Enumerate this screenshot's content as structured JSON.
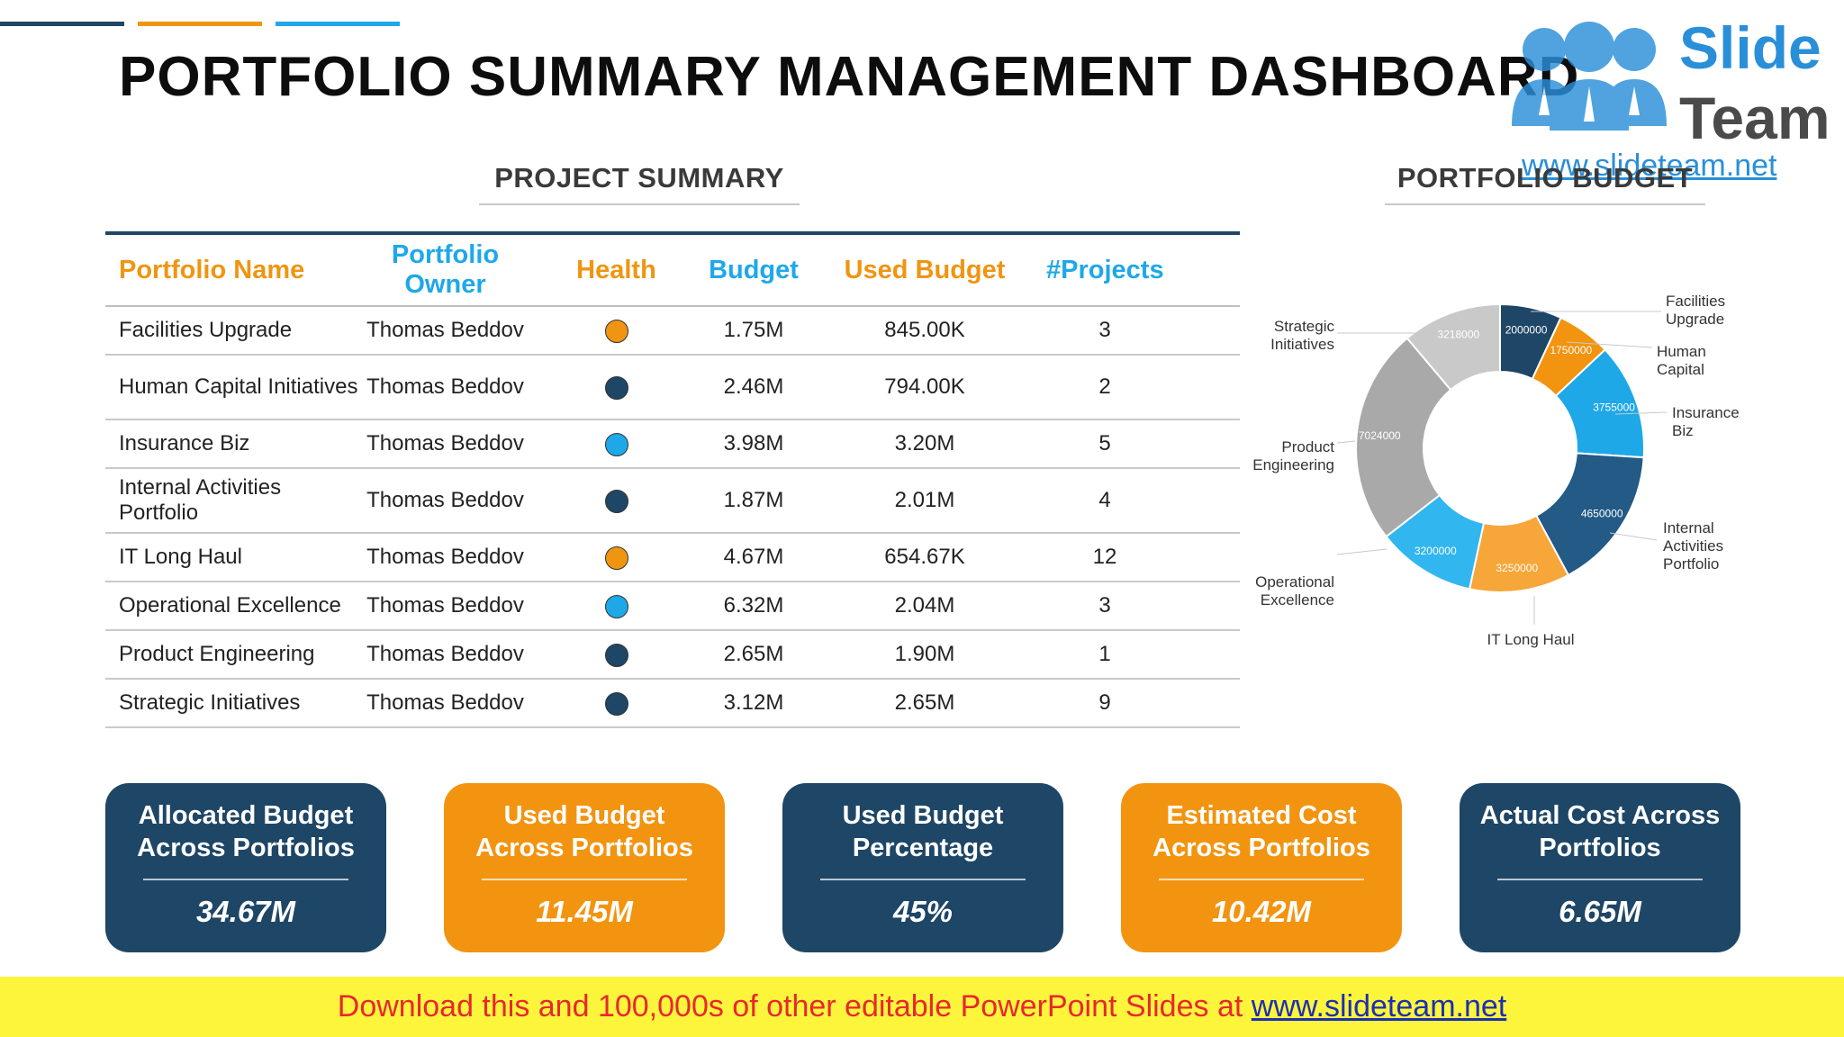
{
  "title": "PORTFOLIO SUMMARY MANAGEMENT DASHBOARD",
  "logo": {
    "line1": "Slide",
    "line2": "Team",
    "url": "www.slideteam.net"
  },
  "project_summary": {
    "heading": "PROJECT SUMMARY",
    "columns": [
      "Portfolio Name",
      "Portfolio Owner",
      "Health",
      "Budget",
      "Used Budget",
      "#Projects"
    ],
    "rows": [
      {
        "name": "Facilities Upgrade",
        "owner": "Thomas Beddov",
        "health_color": "#ef9512",
        "budget": "1.75M",
        "used": "845.00K",
        "projects": "3"
      },
      {
        "name": "Human Capital Initiatives",
        "owner": "Thomas Beddov",
        "health_color": "#1e4666",
        "budget": "2.46M",
        "used": "794.00K",
        "projects": "2"
      },
      {
        "name": "Insurance Biz",
        "owner": "Thomas Beddov",
        "health_color": "#1ea8e8",
        "budget": "3.98M",
        "used": "3.20M",
        "projects": "5"
      },
      {
        "name": "Internal Activities Portfolio",
        "owner": "Thomas Beddov",
        "health_color": "#1e4666",
        "budget": "1.87M",
        "used": "2.01M",
        "projects": "4"
      },
      {
        "name": "IT Long Haul",
        "owner": "Thomas Beddov",
        "health_color": "#ef9512",
        "budget": "4.67M",
        "used": "654.67K",
        "projects": "12"
      },
      {
        "name": "Operational Excellence",
        "owner": "Thomas Beddov",
        "health_color": "#1ea8e8",
        "budget": "6.32M",
        "used": "2.04M",
        "projects": "3"
      },
      {
        "name": "Product Engineering",
        "owner": "Thomas Beddov",
        "health_color": "#1e4666",
        "budget": "2.65M",
        "used": "1.90M",
        "projects": "1"
      },
      {
        "name": "Strategic Initiatives",
        "owner": "Thomas Beddov",
        "health_color": "#1e4666",
        "budget": "3.12M",
        "used": "2.65M",
        "projects": "9"
      }
    ]
  },
  "chart_data": {
    "type": "pie",
    "title": "PORTFOLIO BUDGET",
    "donut": true,
    "categories": [
      "Facilities Upgrade",
      "Human Capital",
      "Insurance Biz",
      "Internal Activities Portfolio",
      "IT Long Haul",
      "Operational Excellence",
      "Product Engineering",
      "Strategic Initiatives"
    ],
    "values": [
      2000000,
      1750000,
      3755000,
      4650000,
      3250000,
      3200000,
      7024000,
      3218000
    ],
    "colors": [
      "#1e4666",
      "#f29410",
      "#1ea8e8",
      "#235a86",
      "#f7a63a",
      "#31b6f0",
      "#a9a9a9",
      "#c9c9c9"
    ],
    "labels": [
      [
        "Facilities",
        "Upgrade"
      ],
      [
        "Human",
        "Capital"
      ],
      [
        "Insurance",
        "Biz"
      ],
      [
        "Internal",
        "Activities",
        "Portfolio"
      ],
      [
        "IT Long Haul"
      ],
      [
        "Operational",
        "Excellence"
      ],
      [
        "Product",
        "Engineering"
      ],
      [
        "Strategic",
        "Initiatives"
      ]
    ]
  },
  "kpis": [
    {
      "label": "Allocated Budget Across Portfolios",
      "value": "34.67M",
      "style": "dark"
    },
    {
      "label": "Used Budget Across Portfolios",
      "value": "11.45M",
      "style": "orange"
    },
    {
      "label": "Used Budget Percentage",
      "value": "45%",
      "style": "dark"
    },
    {
      "label": "Estimated Cost Across Portfolios",
      "value": "10.42M",
      "style": "orange"
    },
    {
      "label": "Actual Cost  Across Portfolios",
      "value": "6.65M",
      "style": "dark"
    }
  ],
  "footer": {
    "text": "Download this and 100,000s of other editable PowerPoint Slides at ",
    "link": "www.slideteam.net"
  }
}
